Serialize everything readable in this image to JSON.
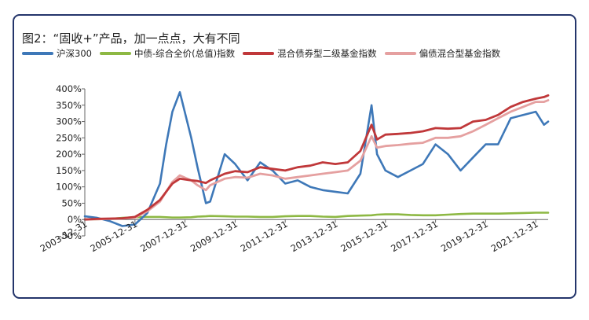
{
  "figure": {
    "title": "图2：“固收+”产品，加一点点，大有不同"
  },
  "chart_data": {
    "type": "line",
    "title": "图2：“固收+”产品，加一点点，大有不同",
    "xlabel": "",
    "ylabel": "",
    "ylim": [
      -50,
      400
    ],
    "y_ticks": [
      "400%",
      "350%",
      "300%",
      "250%",
      "200%",
      "150%",
      "100%",
      "50%",
      "0%",
      "-50%"
    ],
    "x_ticks": [
      "2003-12-31",
      "2005-12-31",
      "2007-12-31",
      "2009-12-31",
      "2011-12-31",
      "2013-12-31",
      "2015-12-31",
      "2017-12-31",
      "2019-12-31",
      "2021-12-31"
    ],
    "grid": false,
    "legend_position": "top",
    "x": [
      "2003-12-31",
      "2004-06-30",
      "2004-12-31",
      "2005-06-30",
      "2005-12-31",
      "2006-06-30",
      "2006-12-31",
      "2007-03-31",
      "2007-06-30",
      "2007-10-16",
      "2008-03-31",
      "2008-06-30",
      "2008-10-31",
      "2008-12-31",
      "2009-07-31",
      "2009-12-31",
      "2010-06-30",
      "2010-12-31",
      "2011-06-30",
      "2011-12-31",
      "2012-06-30",
      "2012-12-31",
      "2013-06-30",
      "2013-12-31",
      "2014-06-30",
      "2014-12-31",
      "2015-06-12",
      "2015-08-31",
      "2015-12-31",
      "2016-06-30",
      "2016-12-31",
      "2017-06-30",
      "2017-12-31",
      "2018-06-30",
      "2018-12-31",
      "2019-06-30",
      "2019-12-31",
      "2020-06-30",
      "2020-12-31",
      "2021-06-30",
      "2021-12-31",
      "2022-04-30",
      "2022-06-30"
    ],
    "series": [
      {
        "name": "沪深300",
        "color": "#3e78b8",
        "values": [
          10,
          5,
          -5,
          -20,
          -15,
          20,
          110,
          230,
          330,
          390,
          250,
          160,
          50,
          55,
          200,
          170,
          120,
          175,
          150,
          110,
          120,
          100,
          90,
          85,
          80,
          140,
          350,
          200,
          150,
          130,
          150,
          170,
          230,
          200,
          150,
          190,
          230,
          230,
          310,
          320,
          330,
          290,
          300
        ]
      },
      {
        "name": "中债-综合全价(总值)指数",
        "color": "#8db843",
        "values": [
          0,
          1,
          2,
          5,
          7,
          8,
          8,
          7,
          6,
          6,
          7,
          9,
          10,
          11,
          10,
          9,
          9,
          8,
          8,
          10,
          11,
          11,
          9,
          8,
          11,
          12,
          13,
          15,
          16,
          16,
          14,
          13,
          13,
          15,
          17,
          18,
          18,
          18,
          19,
          20,
          21,
          21,
          21
        ]
      },
      {
        "name": "混合债券型二级基金指数",
        "color": "#c0383a",
        "values": [
          0,
          2,
          3,
          4,
          8,
          30,
          60,
          85,
          110,
          125,
          120,
          118,
          112,
          120,
          140,
          148,
          145,
          160,
          155,
          150,
          160,
          165,
          175,
          170,
          175,
          210,
          290,
          245,
          260,
          262,
          265,
          270,
          280,
          278,
          280,
          300,
          305,
          320,
          345,
          360,
          370,
          375,
          380
        ]
      },
      {
        "name": "偏债混合型基金指数",
        "color": "#e5a0a0",
        "values": [
          0,
          1,
          2,
          3,
          6,
          25,
          55,
          85,
          115,
          135,
          120,
          105,
          90,
          105,
          125,
          130,
          128,
          140,
          135,
          125,
          130,
          135,
          140,
          145,
          150,
          180,
          255,
          220,
          225,
          228,
          232,
          235,
          250,
          250,
          255,
          270,
          290,
          310,
          330,
          345,
          360,
          360,
          365
        ]
      }
    ]
  }
}
